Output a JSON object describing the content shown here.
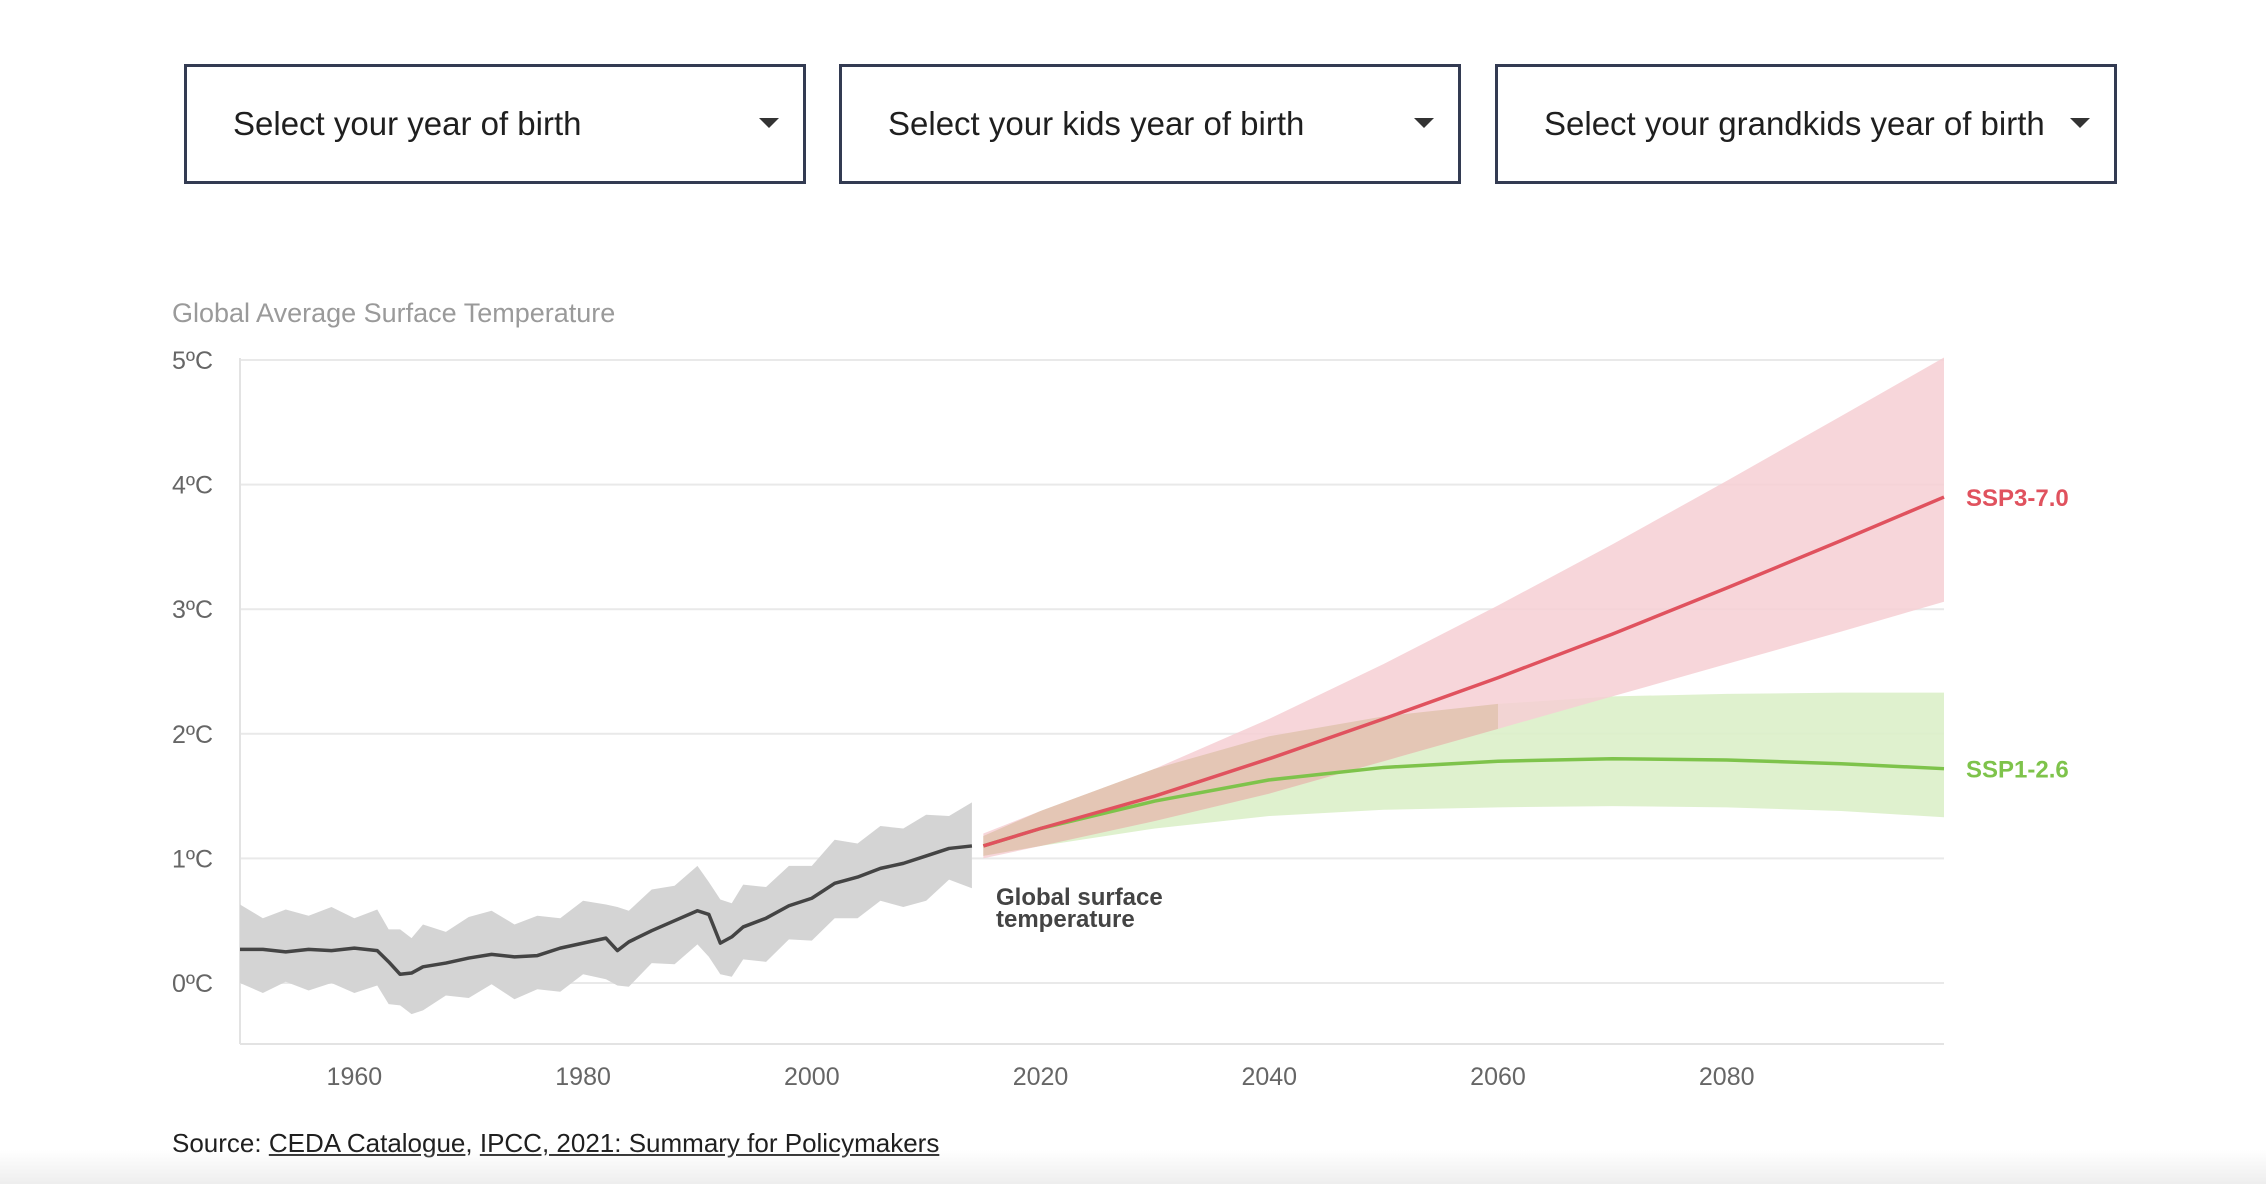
{
  "selects": [
    {
      "label": "Select your year of birth"
    },
    {
      "label": "Select your kids year of birth"
    },
    {
      "label": "Select your grandkids year of birth"
    }
  ],
  "colors": {
    "ssp370": "#e0525e",
    "ssp370_band": "#f6cfd4",
    "ssp126": "#7ec34b",
    "ssp126_band": "#dcefc9",
    "historical": "#444444",
    "historical_band": "#d4d4d4",
    "axis_text": "#666666",
    "grid": "#e9e9e9",
    "select_border": "#333b52"
  },
  "chart_data": {
    "type": "line",
    "title": "Global Average Surface Temperature",
    "ylim": [
      -0.5,
      5
    ],
    "xlim": [
      1950,
      2099
    ],
    "y_ticks": [
      0,
      1,
      2,
      3,
      4,
      5
    ],
    "y_tick_labels": [
      "0ºC",
      "1ºC",
      "2ºC",
      "3ºC",
      "4ºC",
      "5ºC"
    ],
    "x_ticks": [
      1960,
      1980,
      2000,
      2020,
      2040,
      2060,
      2080
    ],
    "x_tick_labels": [
      "1960",
      "1980",
      "2000",
      "2020",
      "2040",
      "2060",
      "2080"
    ],
    "grid": true,
    "historical": {
      "name": "Global surface temperature",
      "x": [
        1950,
        1952,
        1954,
        1956,
        1958,
        1960,
        1962,
        1963,
        1964,
        1965,
        1966,
        1968,
        1970,
        1972,
        1974,
        1976,
        1978,
        1980,
        1982,
        1983,
        1984,
        1986,
        1988,
        1990,
        1991,
        1992,
        1993,
        1994,
        1996,
        1998,
        2000,
        2002,
        2004,
        2006,
        2008,
        2010,
        2012,
        2014
      ],
      "y": [
        0.27,
        0.27,
        0.25,
        0.27,
        0.26,
        0.28,
        0.26,
        0.17,
        0.07,
        0.08,
        0.13,
        0.16,
        0.2,
        0.23,
        0.21,
        0.22,
        0.28,
        0.32,
        0.36,
        0.26,
        0.33,
        0.42,
        0.5,
        0.58,
        0.55,
        0.32,
        0.37,
        0.45,
        0.52,
        0.62,
        0.68,
        0.8,
        0.85,
        0.92,
        0.96,
        1.02,
        1.08,
        1.1
      ],
      "band_width": 0.3
    },
    "series": [
      {
        "name": "SSP3-7.0",
        "x": [
          2015,
          2020,
          2030,
          2040,
          2050,
          2060,
          2070,
          2080,
          2090,
          2099
        ],
        "y": [
          1.1,
          1.24,
          1.5,
          1.8,
          2.12,
          2.45,
          2.8,
          3.17,
          3.55,
          3.9
        ],
        "lower": [
          1.0,
          1.1,
          1.3,
          1.52,
          1.78,
          2.04,
          2.3,
          2.56,
          2.82,
          3.06
        ],
        "upper": [
          1.2,
          1.38,
          1.72,
          2.12,
          2.56,
          3.03,
          3.52,
          4.03,
          4.55,
          5.02
        ]
      },
      {
        "name": "SSP1-2.6",
        "x": [
          2015,
          2020,
          2030,
          2040,
          2050,
          2060,
          2070,
          2080,
          2090,
          2099
        ],
        "y": [
          1.1,
          1.24,
          1.46,
          1.63,
          1.73,
          1.78,
          1.8,
          1.79,
          1.76,
          1.72
        ],
        "lower": [
          1.02,
          1.1,
          1.24,
          1.34,
          1.39,
          1.41,
          1.42,
          1.41,
          1.38,
          1.33
        ],
        "upper": [
          1.18,
          1.38,
          1.72,
          1.98,
          2.14,
          2.24,
          2.3,
          2.32,
          2.33,
          2.33
        ]
      }
    ]
  },
  "source": {
    "prefix": "Source: ",
    "link1": "CEDA Catalogue",
    "sep": ", ",
    "link2": "IPCC, 2021: Summary for Policymakers"
  }
}
